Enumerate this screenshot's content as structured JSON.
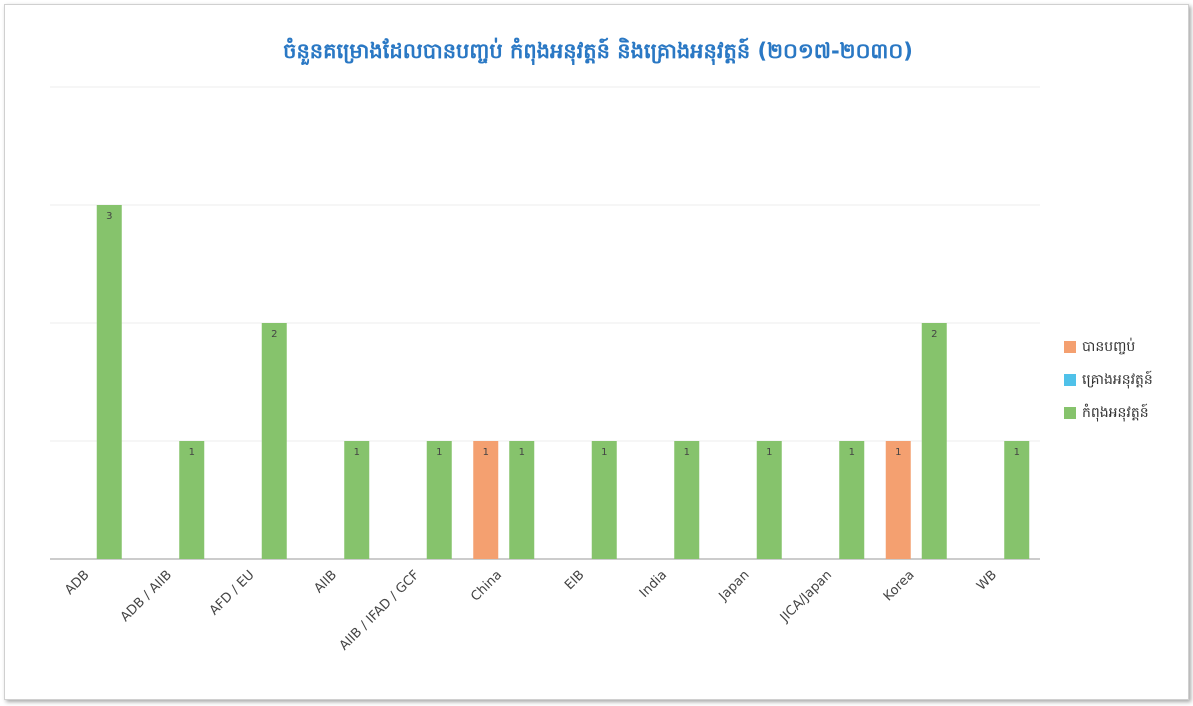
{
  "chart_data": {
    "type": "bar",
    "title": "ចំនួនគម្រោងដែលបានបញ្ចប់ កំពុងអនុវត្តន៍ និងគ្រោងអនុវត្តន៍ (២០១៧-២០៣០)",
    "categories": [
      "ADB",
      "ADB / AIIB",
      "AFD / EU",
      "AIIB",
      "AIIB / IFAD / GCF",
      "China",
      "EIB",
      "India",
      "Japan",
      "JICA/Japan",
      "Korea",
      "WB"
    ],
    "series": [
      {
        "name": "បានបញ្ចប់",
        "color": "#f4a070",
        "values": [
          null,
          null,
          null,
          null,
          null,
          1,
          null,
          null,
          null,
          null,
          1,
          null
        ]
      },
      {
        "name": "គ្រោងអនុវត្តន៍",
        "color": "#4fc1e9",
        "values": [
          null,
          null,
          null,
          null,
          null,
          null,
          null,
          null,
          null,
          null,
          null,
          null
        ]
      },
      {
        "name": "កំពុងអនុវត្តន៍",
        "color": "#86c36c",
        "values": [
          3,
          1,
          2,
          1,
          1,
          1,
          1,
          1,
          1,
          1,
          2,
          1
        ]
      }
    ],
    "ylim": [
      0,
      4
    ],
    "yticks": [
      0,
      1,
      2,
      3,
      4
    ],
    "grid": true,
    "legend": "right"
  }
}
